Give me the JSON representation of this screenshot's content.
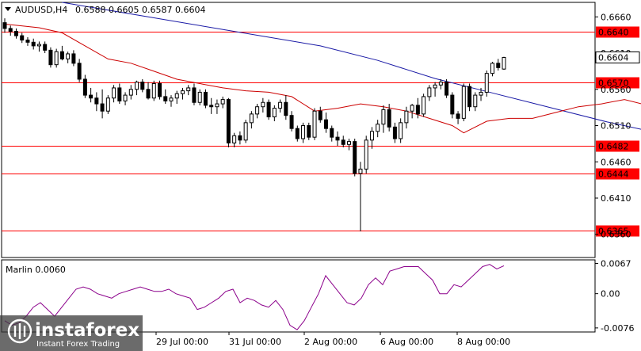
{
  "header": {
    "symbol": "AUDUSD,H4",
    "ohlc": "0.6588 0.6605 0.6587 0.6604"
  },
  "watermark": {
    "brand": "instaforex",
    "tagline": "Instant Forex Trading"
  },
  "colors": {
    "candle": "#000000",
    "ma_fast": "#cc0000",
    "ma_slow": "#1a1aa6",
    "level": "#ff0000",
    "marlin": "#8b008b",
    "bg": "#ffffff",
    "frame": "#000000"
  },
  "chart_data": {
    "type": "candlestick",
    "price_ylim": [
      0.6328,
      0.668
    ],
    "y_ticks": [
      "0.6660",
      "0.6610",
      "0.6560",
      "0.6510",
      "0.6460",
      "0.6410",
      "0.6360"
    ],
    "x_ticks": [
      "29 Jul 00:00",
      "31 Jul 00:00",
      "2 Aug 00:00",
      "6 Aug 00:00",
      "8 Aug 00:00"
    ],
    "current_price": "0.6604",
    "levels": [
      {
        "label": "0.6640",
        "value": 0.664
      },
      {
        "label": "0.6570",
        "value": 0.657
      },
      {
        "label": "0.6482",
        "value": 0.6482
      },
      {
        "label": "0.6444",
        "value": 0.6444
      },
      {
        "label": "0.6365",
        "value": 0.6365
      }
    ],
    "candles": [
      [
        0.6652,
        0.6658,
        0.6638,
        0.6644
      ],
      [
        0.6644,
        0.6648,
        0.6634,
        0.664
      ],
      [
        0.664,
        0.6644,
        0.663,
        0.6634
      ],
      [
        0.6634,
        0.6638,
        0.6624,
        0.6628
      ],
      [
        0.6628,
        0.6632,
        0.662,
        0.6625
      ],
      [
        0.6625,
        0.663,
        0.6615,
        0.662
      ],
      [
        0.662,
        0.6626,
        0.6612,
        0.6622
      ],
      [
        0.6622,
        0.6626,
        0.661,
        0.6614
      ],
      [
        0.6614,
        0.6618,
        0.659,
        0.6594
      ],
      [
        0.6594,
        0.6616,
        0.659,
        0.6612
      ],
      [
        0.6612,
        0.662,
        0.66,
        0.6602
      ],
      [
        0.6602,
        0.6612,
        0.6596,
        0.6609
      ],
      [
        0.6609,
        0.6614,
        0.6592,
        0.6596
      ],
      [
        0.6596,
        0.6602,
        0.657,
        0.6574
      ],
      [
        0.6574,
        0.658,
        0.6548,
        0.6552
      ],
      [
        0.6552,
        0.6562,
        0.6542,
        0.6548
      ],
      [
        0.6548,
        0.6556,
        0.653,
        0.654
      ],
      [
        0.654,
        0.656,
        0.652,
        0.653
      ],
      [
        0.653,
        0.6552,
        0.6526,
        0.6548
      ],
      [
        0.6548,
        0.6566,
        0.6542,
        0.6562
      ],
      [
        0.6562,
        0.6568,
        0.654,
        0.6544
      ],
      [
        0.6544,
        0.6556,
        0.6538,
        0.6552
      ],
      [
        0.6552,
        0.6566,
        0.6546,
        0.656
      ],
      [
        0.656,
        0.6572,
        0.6552,
        0.657
      ],
      [
        0.657,
        0.6574,
        0.6556,
        0.656
      ],
      [
        0.656,
        0.657,
        0.6546,
        0.6548
      ],
      [
        0.6548,
        0.6572,
        0.6544,
        0.6568
      ],
      [
        0.6568,
        0.6572,
        0.6546,
        0.655
      ],
      [
        0.655,
        0.656,
        0.654,
        0.6544
      ],
      [
        0.6544,
        0.6552,
        0.6536,
        0.6548
      ],
      [
        0.6548,
        0.6558,
        0.654,
        0.6554
      ],
      [
        0.6554,
        0.6562,
        0.6546,
        0.6558
      ],
      [
        0.6558,
        0.6566,
        0.6552,
        0.6562
      ],
      [
        0.6562,
        0.6568,
        0.6538,
        0.6542
      ],
      [
        0.6542,
        0.656,
        0.6538,
        0.6556
      ],
      [
        0.6556,
        0.656,
        0.6534,
        0.6538
      ],
      [
        0.6538,
        0.6548,
        0.6526,
        0.6536
      ],
      [
        0.6536,
        0.6546,
        0.6526,
        0.654
      ],
      [
        0.654,
        0.655,
        0.6534,
        0.6546
      ],
      [
        0.6546,
        0.6548,
        0.648,
        0.6486
      ],
      [
        0.6486,
        0.65,
        0.648,
        0.6496
      ],
      [
        0.6496,
        0.6502,
        0.6484,
        0.649
      ],
      [
        0.649,
        0.6518,
        0.6486,
        0.6514
      ],
      [
        0.6514,
        0.653,
        0.6506,
        0.6526
      ],
      [
        0.6526,
        0.654,
        0.652,
        0.6536
      ],
      [
        0.6536,
        0.6548,
        0.6528,
        0.6542
      ],
      [
        0.6542,
        0.6546,
        0.6518,
        0.6522
      ],
      [
        0.6522,
        0.6538,
        0.6516,
        0.6534
      ],
      [
        0.6534,
        0.6546,
        0.6528,
        0.6542
      ],
      [
        0.6542,
        0.6552,
        0.6518,
        0.6524
      ],
      [
        0.6524,
        0.653,
        0.6502,
        0.6506
      ],
      [
        0.6506,
        0.651,
        0.6488,
        0.6492
      ],
      [
        0.6492,
        0.6514,
        0.6486,
        0.651
      ],
      [
        0.651,
        0.6514,
        0.649,
        0.6494
      ],
      [
        0.6494,
        0.6534,
        0.649,
        0.653
      ],
      [
        0.653,
        0.6536,
        0.6514,
        0.6518
      ],
      [
        0.6518,
        0.6528,
        0.65,
        0.6506
      ],
      [
        0.6506,
        0.651,
        0.6488,
        0.6494
      ],
      [
        0.6494,
        0.6502,
        0.6482,
        0.649
      ],
      [
        0.649,
        0.6496,
        0.648,
        0.6484
      ],
      [
        0.6484,
        0.6492,
        0.6476,
        0.6488
      ],
      [
        0.6488,
        0.6492,
        0.644,
        0.6444
      ],
      [
        0.6444,
        0.646,
        0.6364,
        0.645
      ],
      [
        0.645,
        0.6496,
        0.6444,
        0.649
      ],
      [
        0.649,
        0.6508,
        0.6478,
        0.6502
      ],
      [
        0.6502,
        0.6518,
        0.6494,
        0.6512
      ],
      [
        0.6512,
        0.6538,
        0.65,
        0.6532
      ],
      [
        0.6532,
        0.654,
        0.6502,
        0.6508
      ],
      [
        0.6508,
        0.6514,
        0.6486,
        0.6492
      ],
      [
        0.6492,
        0.652,
        0.6486,
        0.6514
      ],
      [
        0.6514,
        0.6536,
        0.6506,
        0.653
      ],
      [
        0.653,
        0.654,
        0.652,
        0.6538
      ],
      [
        0.6538,
        0.6548,
        0.652,
        0.6526
      ],
      [
        0.6526,
        0.6554,
        0.6522,
        0.655
      ],
      [
        0.655,
        0.6566,
        0.6544,
        0.6562
      ],
      [
        0.6562,
        0.657,
        0.655,
        0.6566
      ],
      [
        0.6566,
        0.6574,
        0.656,
        0.657
      ],
      [
        0.657,
        0.6574,
        0.6548,
        0.6552
      ],
      [
        0.6552,
        0.6556,
        0.652,
        0.6526
      ],
      [
        0.6526,
        0.653,
        0.6512,
        0.652
      ],
      [
        0.652,
        0.6568,
        0.6516,
        0.6564
      ],
      [
        0.6564,
        0.6568,
        0.653,
        0.6536
      ],
      [
        0.6536,
        0.6556,
        0.653,
        0.6552
      ],
      [
        0.6552,
        0.6562,
        0.6544,
        0.6556
      ],
      [
        0.6556,
        0.6586,
        0.655,
        0.6582
      ],
      [
        0.6582,
        0.6598,
        0.6578,
        0.6596
      ],
      [
        0.6596,
        0.6602,
        0.6586,
        0.659
      ],
      [
        0.6588,
        0.6605,
        0.6587,
        0.6604
      ]
    ],
    "ma_fast_points": [
      [
        0,
        0.665
      ],
      [
        6,
        0.6645
      ],
      [
        10,
        0.6638
      ],
      [
        14,
        0.662
      ],
      [
        18,
        0.6602
      ],
      [
        22,
        0.6596
      ],
      [
        26,
        0.6585
      ],
      [
        30,
        0.6574
      ],
      [
        34,
        0.6568
      ],
      [
        38,
        0.6562
      ],
      [
        42,
        0.6558
      ],
      [
        46,
        0.6556
      ],
      [
        50,
        0.655
      ],
      [
        54,
        0.653
      ],
      [
        58,
        0.6534
      ],
      [
        62,
        0.654
      ],
      [
        66,
        0.6536
      ],
      [
        70,
        0.653
      ],
      [
        74,
        0.652
      ],
      [
        78,
        0.651
      ],
      [
        80,
        0.65
      ],
      [
        84,
        0.6516
      ],
      [
        88,
        0.652
      ],
      [
        92,
        0.652
      ],
      [
        96,
        0.6528
      ],
      [
        100,
        0.6536
      ],
      [
        104,
        0.654
      ],
      [
        108,
        0.6546
      ],
      [
        112,
        0.6538
      ],
      [
        116,
        0.6524
      ],
      [
        120,
        0.6518
      ],
      [
        124,
        0.654
      ],
      [
        126,
        0.6554
      ],
      [
        128,
        0.656
      ]
    ],
    "ma_slow_points": [
      [
        10,
        0.668
      ],
      [
        25,
        0.666
      ],
      [
        40,
        0.664
      ],
      [
        55,
        0.662
      ],
      [
        65,
        0.66
      ],
      [
        75,
        0.6575
      ],
      [
        85,
        0.6555
      ],
      [
        95,
        0.6535
      ],
      [
        105,
        0.6515
      ],
      [
        115,
        0.6498
      ],
      [
        122,
        0.649
      ],
      [
        126,
        0.6492
      ],
      [
        128,
        0.6494
      ]
    ],
    "marlin": {
      "label": "Marlin 0.0060",
      "ylim": [
        -0.0085,
        0.0075
      ],
      "y_ticks": [
        "0.0067",
        "0.00",
        "-0.0076"
      ],
      "values": [
        -0.006,
        -0.007,
        -0.0065,
        -0.005,
        -0.003,
        -0.002,
        -0.0035,
        -0.005,
        -0.003,
        -0.001,
        0.001,
        0.0015,
        0.001,
        0.0,
        -0.0005,
        -0.001,
        0.0,
        0.0005,
        0.001,
        0.0015,
        0.001,
        0.0005,
        0.0005,
        0.001,
        0.0,
        -0.0005,
        -0.001,
        -0.0035,
        -0.003,
        -0.002,
        -0.001,
        0.0005,
        0.001,
        -0.002,
        -0.001,
        -0.0015,
        -0.0025,
        -0.003,
        -0.0015,
        -0.0035,
        -0.007,
        -0.008,
        -0.006,
        -0.003,
        0.0,
        0.004,
        0.002,
        0.0,
        -0.002,
        -0.0025,
        -0.001,
        0.002,
        0.0035,
        0.002,
        0.005,
        0.0055,
        0.006,
        0.006,
        0.006,
        0.0045,
        0.003,
        0.0,
        0.0,
        0.002,
        0.0015,
        0.003,
        0.0045,
        0.006,
        0.0065,
        0.0055,
        0.0062
      ]
    }
  }
}
